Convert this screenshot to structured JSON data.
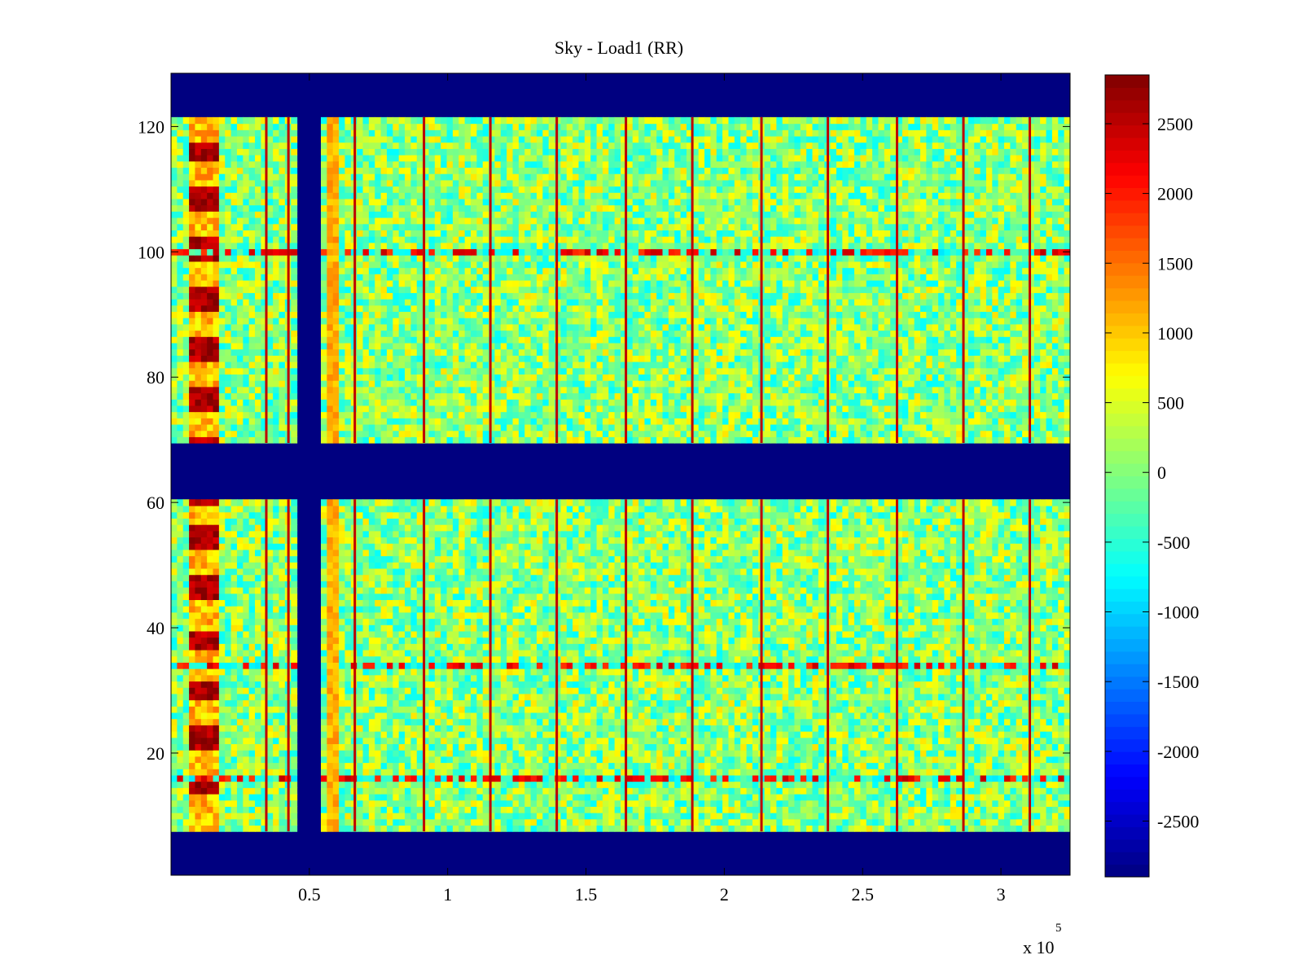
{
  "chart_data": {
    "type": "heatmap",
    "title": "Sky - Load1 (RR)",
    "xlabel": "",
    "ylabel": "",
    "x_exponent_label": "x 10",
    "x_exponent": "5",
    "xlim": [
      0,
      3.25
    ],
    "ylim": [
      0.5,
      128.5
    ],
    "x_ticks": [
      0.5,
      1,
      1.5,
      2,
      2.5,
      3
    ],
    "x_tick_labels": [
      "0.5",
      "1",
      "1.5",
      "2",
      "2.5",
      "3"
    ],
    "y_ticks": [
      20,
      40,
      60,
      80,
      100,
      120
    ],
    "y_tick_labels": [
      "20",
      "40",
      "60",
      "80",
      "100",
      "120"
    ],
    "colormap": "jet",
    "clim": [
      -2900,
      2850
    ],
    "colorbar_ticks": [
      2500,
      2000,
      1500,
      1000,
      500,
      0,
      -500,
      -1000,
      -1500,
      -2000,
      -2500
    ],
    "colorbar_tick_labels": [
      "2500",
      "2000",
      "1500",
      "1000",
      "500",
      "0",
      "-500",
      "-1000",
      "-1500",
      "-2000",
      "-2500"
    ],
    "masked_rows": [
      [
        1,
        7
      ],
      [
        69,
        61
      ],
      [
        122,
        128
      ]
    ],
    "masked_x_band": [
      0.44,
      0.56
    ],
    "bright_rows": [
      100,
      34,
      16
    ],
    "rfi_block_x": [
      0.05,
      0.17
    ],
    "rfi_block_rows": [
      [
        14,
        16
      ],
      [
        21,
        24
      ],
      [
        29,
        31
      ],
      [
        37,
        39
      ],
      [
        45,
        48
      ],
      [
        53,
        56
      ],
      [
        60,
        62
      ],
      [
        68,
        70
      ],
      [
        75,
        78
      ],
      [
        83,
        86
      ],
      [
        91,
        94
      ],
      [
        99,
        102
      ],
      [
        107,
        110
      ],
      [
        115,
        117
      ]
    ],
    "vertical_lines_x": [
      0.34,
      0.42,
      0.66,
      0.91,
      1.15,
      1.39,
      1.64,
      1.88,
      2.13,
      2.37,
      2.62,
      2.86,
      3.1
    ],
    "value_range_note": "Most pixels between -1000 and 1000"
  }
}
